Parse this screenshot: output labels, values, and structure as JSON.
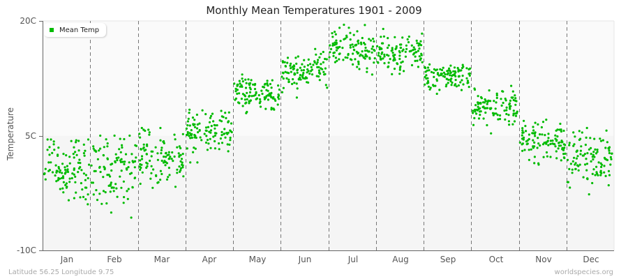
{
  "title": "Monthly Mean Temperatures 1901 - 2009",
  "footer": {
    "location": "Latitude 56.25 Longitude 9.75",
    "credit": "worldspecies.org"
  },
  "legend": {
    "label": "Mean Temp",
    "color": "#00bb00"
  },
  "colors": {
    "dot": "#00bb00",
    "band_upper": "#fafafa",
    "band_lower": "#f5f5f5",
    "axis": "#666666",
    "divider": "#777777"
  },
  "chart_data": {
    "type": "scatter",
    "title": "Monthly Mean Temperatures 1901 - 2009",
    "xlabel": "",
    "ylabel": "Temperature",
    "ylim": [
      -10,
      20
    ],
    "yticks": [
      -10,
      5,
      20
    ],
    "ytick_labels": [
      "-10C",
      "5C",
      "20C"
    ],
    "categories": [
      "Jan",
      "Feb",
      "Mar",
      "Apr",
      "May",
      "Jun",
      "Jul",
      "Aug",
      "Sep",
      "Oct",
      "Nov",
      "Dec"
    ],
    "grid": "vertical dashed dividers between months",
    "legend_position": "top-left",
    "series": [
      {
        "name": "Mean Temp",
        "years": "1901-2009",
        "points_per_month": 109,
        "monthly_summary": [
          {
            "month": "Jan",
            "mean": 0.8,
            "std": 2.4,
            "min": -8.5,
            "max": 4.5
          },
          {
            "month": "Feb",
            "mean": 0.6,
            "std": 2.6,
            "min": -9.0,
            "max": 5.0
          },
          {
            "month": "Mar",
            "mean": 2.3,
            "std": 1.7,
            "min": -5.0,
            "max": 6.0
          },
          {
            "month": "Apr",
            "mean": 5.7,
            "std": 1.3,
            "min": 1.5,
            "max": 9.5
          },
          {
            "month": "May",
            "mean": 10.4,
            "std": 1.2,
            "min": 6.5,
            "max": 13.0
          },
          {
            "month": "Jun",
            "mean": 13.4,
            "std": 1.2,
            "min": 9.5,
            "max": 17.0
          },
          {
            "month": "Jul",
            "mean": 16.0,
            "std": 1.3,
            "min": 12.0,
            "max": 20.0
          },
          {
            "month": "Aug",
            "mean": 15.8,
            "std": 1.3,
            "min": 11.5,
            "max": 19.5
          },
          {
            "month": "Sep",
            "mean": 12.7,
            "std": 0.9,
            "min": 9.5,
            "max": 15.5
          },
          {
            "month": "Oct",
            "mean": 8.7,
            "std": 1.2,
            "min": 4.5,
            "max": 12.0
          },
          {
            "month": "Nov",
            "mean": 4.3,
            "std": 1.3,
            "min": -0.5,
            "max": 8.0
          },
          {
            "month": "Dec",
            "mean": 1.7,
            "std": 1.8,
            "min": -4.5,
            "max": 6.0
          }
        ]
      }
    ]
  }
}
